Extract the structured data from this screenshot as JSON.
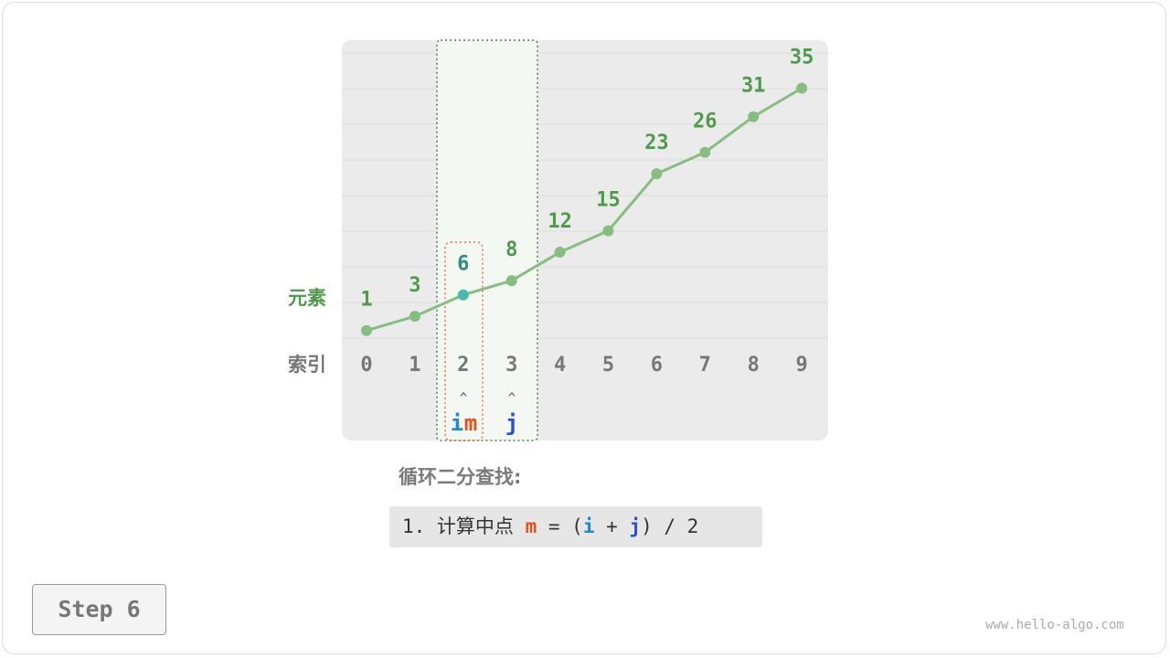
{
  "diagram": {
    "row_labels": {
      "elements": "元素",
      "index": "索引"
    },
    "indices": [
      "0",
      "1",
      "2",
      "3",
      "4",
      "5",
      "6",
      "7",
      "8",
      "9"
    ],
    "values": [
      1,
      3,
      6,
      8,
      12,
      15,
      23,
      26,
      31,
      35
    ],
    "highlight_index": 2,
    "pointers": {
      "i_label": "i",
      "m_label": "m",
      "j_label": "j",
      "i_index": 2,
      "m_index": 2,
      "j_index": 3,
      "arrow": "^"
    },
    "colors": {
      "line": "#88bd82",
      "value_text": "#4f9a4b",
      "highlight_point": "#4bb9ae",
      "highlight_text": "#2f8b83",
      "i": "#1f88d0",
      "m": "#e6501e",
      "j": "#2a4fd1"
    }
  },
  "caption": {
    "title": "循环二分查找:",
    "code_prefix": "1. 计算中点 ",
    "m": "m",
    "eq": " = (",
    "i": "i",
    "plus": " + ",
    "j": "j",
    "suffix": ") / 2"
  },
  "step_button": "Step 6",
  "watermark": "www.hello-algo.com"
}
